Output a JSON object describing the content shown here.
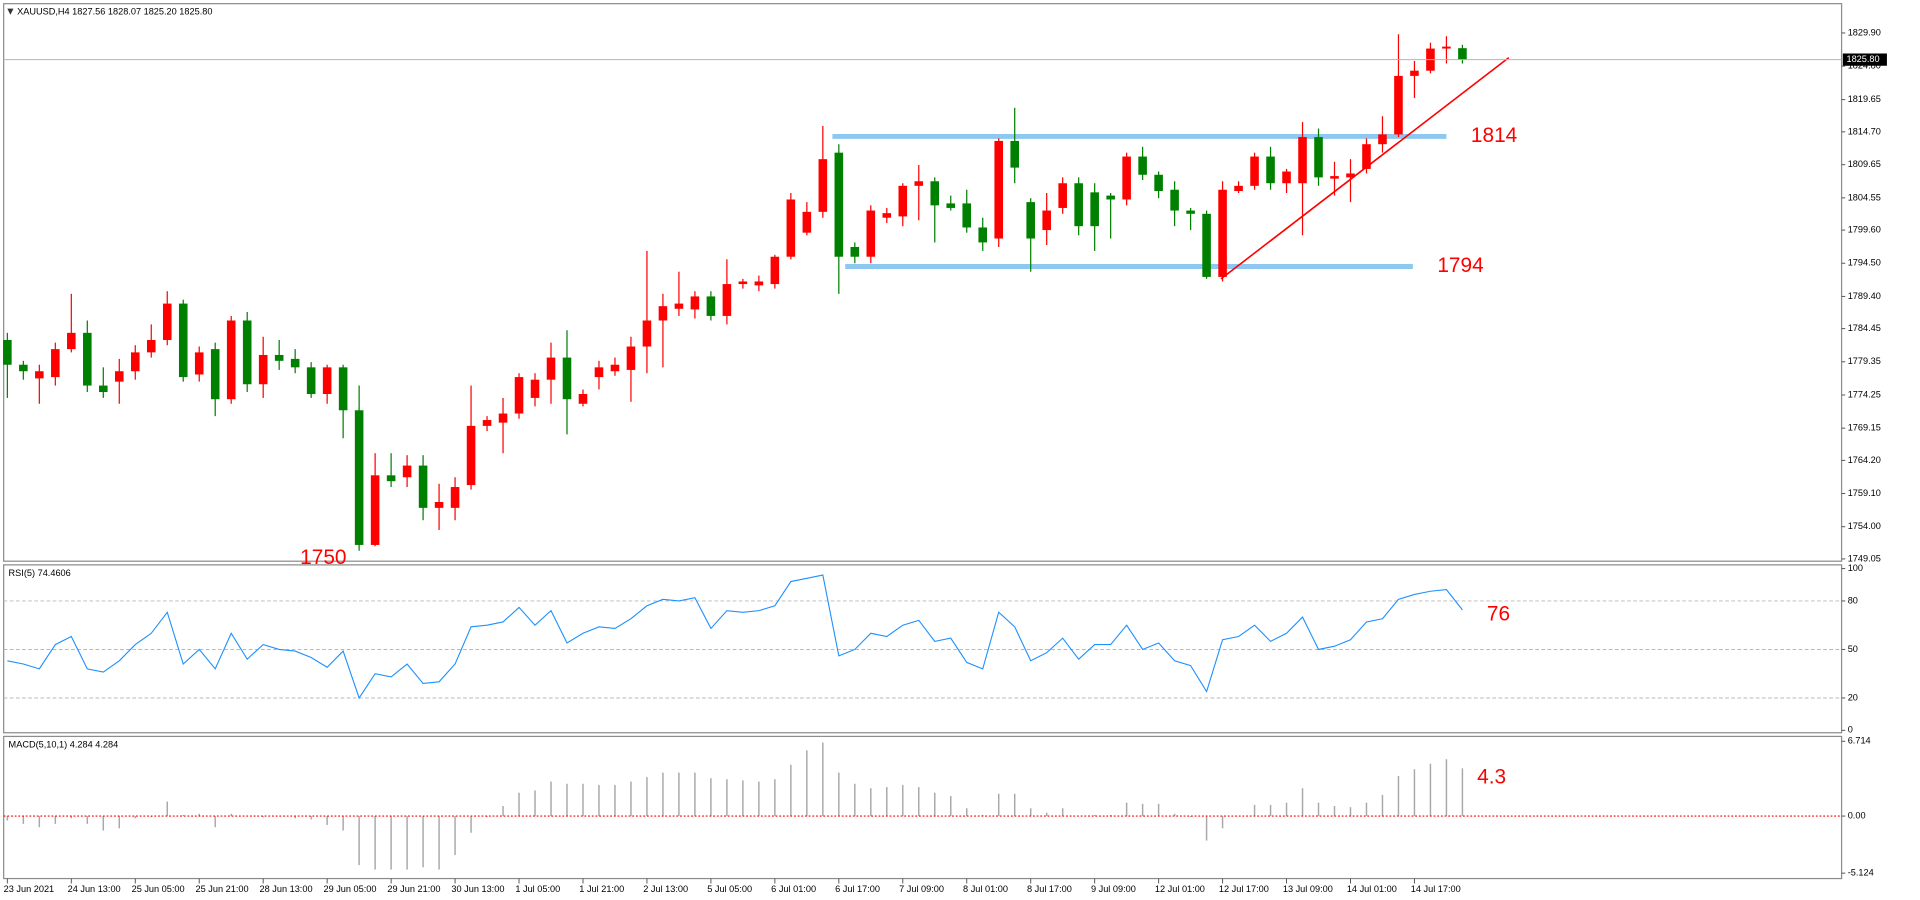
{
  "chart_data": [
    {
      "type": "candlestick",
      "title": "XAUUSD,H4  1827.56 1828.07 1825.20 1825.80",
      "categories": [
        "23 Jun 2021",
        null,
        null,
        null,
        "24 Jun 13:00",
        null,
        null,
        null,
        "25 Jun 05:00",
        null,
        null,
        null,
        "25 Jun 21:00",
        null,
        null,
        null,
        "28 Jun 13:00",
        null,
        null,
        null,
        "29 Jun 05:00",
        null,
        null,
        null,
        "29 Jun 21:00",
        null,
        null,
        null,
        "30 Jun 13:00",
        null,
        null,
        null,
        "1 Jul 05:00",
        null,
        null,
        null,
        "1 Jul 21:00",
        null,
        null,
        null,
        "2 Jul 13:00",
        null,
        null,
        null,
        "5 Jul 05:00",
        null,
        null,
        null,
        "6 Jul 01:00",
        null,
        null,
        null,
        "6 Jul 17:00",
        null,
        null,
        null,
        "7 Jul 09:00",
        null,
        null,
        null,
        "8 Jul 01:00",
        null,
        null,
        null,
        "8 Jul 17:00",
        null,
        null,
        null,
        "9 Jul 09:00",
        null,
        null,
        null,
        "12 Jul 01:00",
        null,
        null,
        null,
        "12 Jul 17:00",
        null,
        null,
        null,
        "13 Jul 09:00",
        null,
        null,
        null,
        "14 Jul 01:00",
        null,
        null,
        null,
        "14 Jul 17:00",
        null,
        null,
        null
      ],
      "open": [
        1782.7,
        1778.9,
        1776.8,
        1777.0,
        1781.3,
        1783.8,
        1775.7,
        1776.3,
        1777.9,
        1780.8,
        1782.7,
        1788.3,
        1777.4,
        1781.3,
        1773.6,
        1785.7,
        1775.9,
        1780.4,
        1779.8,
        1778.5,
        1774.4,
        1778.5,
        1771.9,
        1751.2,
        1761.9,
        1761.6,
        1763.4,
        1756.9,
        1756.9,
        1760.4,
        1769.5,
        1770.0,
        1771.4,
        1773.8,
        1776.6,
        1780.0,
        1772.9,
        1777.0,
        1777.9,
        1778.1,
        1781.7,
        1785.7,
        1787.5,
        1787.4,
        1789.4,
        1786.4,
        1791.3,
        1791.1,
        1791.3,
        1795.5,
        1799.2,
        1802.4,
        1811.5,
        1797.0,
        1795.5,
        1801.5,
        1801.7,
        1806.4,
        1807.1,
        1803.7,
        1803.7,
        1800.0,
        1798.3,
        1813.3,
        1803.9,
        1799.6,
        1803.0,
        1806.8,
        1805.4,
        1804.9,
        1804.3,
        1810.9,
        1808.1,
        1805.8,
        1802.6,
        1802.1,
        1792.4,
        1805.6,
        1806.4,
        1810.9,
        1806.8,
        1806.8,
        1813.9,
        1807.5,
        1807.7,
        1809.0,
        1812.8,
        1814.3,
        1823.3,
        1824.1,
        1827.5,
        1827.56
      ],
      "high": [
        1783.8,
        1779.5,
        1778.9,
        1782.3,
        1789.8,
        1785.7,
        1778.5,
        1779.8,
        1781.9,
        1785.1,
        1790.2,
        1788.9,
        1781.7,
        1782.3,
        1786.4,
        1787.0,
        1783.2,
        1782.7,
        1781.3,
        1779.3,
        1778.9,
        1778.9,
        1775.7,
        1765.3,
        1765.3,
        1765.0,
        1765.0,
        1760.6,
        1761.6,
        1775.7,
        1771.0,
        1773.8,
        1777.6,
        1777.6,
        1782.3,
        1784.2,
        1775.1,
        1779.5,
        1780.0,
        1783.2,
        1796.4,
        1789.8,
        1793.2,
        1790.2,
        1790.2,
        1795.1,
        1792.1,
        1792.6,
        1795.8,
        1805.3,
        1803.9,
        1815.6,
        1812.8,
        1797.7,
        1803.4,
        1803.0,
        1806.8,
        1809.6,
        1807.7,
        1804.9,
        1805.8,
        1801.5,
        1813.7,
        1818.4,
        1804.5,
        1805.3,
        1807.7,
        1807.7,
        1806.8,
        1805.3,
        1811.5,
        1812.4,
        1808.6,
        1807.1,
        1803.0,
        1802.6,
        1807.1,
        1807.1,
        1811.5,
        1812.4,
        1809.0,
        1816.2,
        1815.2,
        1810.1,
        1810.5,
        1813.7,
        1817.1,
        1829.7,
        1825.6,
        1828.4,
        1829.4,
        1828.07
      ],
      "low": [
        1773.8,
        1776.6,
        1772.9,
        1775.7,
        1780.8,
        1774.7,
        1773.8,
        1772.9,
        1776.6,
        1780.0,
        1781.9,
        1776.3,
        1776.3,
        1771.0,
        1772.9,
        1774.7,
        1773.8,
        1778.1,
        1777.6,
        1773.8,
        1772.9,
        1767.6,
        1750.3,
        1751.0,
        1760.1,
        1760.1,
        1755.0,
        1753.5,
        1755.0,
        1759.7,
        1768.7,
        1765.3,
        1770.6,
        1772.5,
        1772.9,
        1768.2,
        1772.5,
        1775.1,
        1777.2,
        1773.2,
        1777.6,
        1778.5,
        1786.4,
        1786.0,
        1785.7,
        1785.1,
        1790.6,
        1790.2,
        1790.6,
        1795.1,
        1798.8,
        1801.5,
        1789.8,
        1794.5,
        1794.5,
        1800.7,
        1800.2,
        1801.1,
        1797.7,
        1802.6,
        1799.2,
        1796.4,
        1797.0,
        1806.8,
        1793.2,
        1797.3,
        1802.1,
        1798.8,
        1796.4,
        1798.3,
        1803.4,
        1807.3,
        1804.5,
        1800.2,
        1799.6,
        1792.1,
        1791.7,
        1805.3,
        1805.8,
        1805.8,
        1805.3,
        1798.8,
        1806.4,
        1804.9,
        1803.9,
        1808.3,
        1811.5,
        1813.9,
        1819.9,
        1823.7,
        1825.2,
        1825.2
      ],
      "close": [
        1778.9,
        1777.9,
        1777.9,
        1781.3,
        1783.8,
        1775.7,
        1774.7,
        1777.9,
        1780.8,
        1782.7,
        1788.3,
        1777.0,
        1780.8,
        1773.6,
        1785.7,
        1775.9,
        1780.4,
        1779.5,
        1778.5,
        1774.4,
        1778.5,
        1771.9,
        1751.2,
        1761.9,
        1761.0,
        1763.4,
        1756.9,
        1757.8,
        1760.1,
        1769.5,
        1770.4,
        1771.4,
        1777.0,
        1776.6,
        1780.0,
        1773.6,
        1774.4,
        1778.5,
        1778.9,
        1781.7,
        1785.7,
        1787.9,
        1788.3,
        1789.4,
        1786.4,
        1791.3,
        1791.7,
        1791.7,
        1795.5,
        1804.3,
        1802.4,
        1810.5,
        1795.5,
        1795.5,
        1802.6,
        1802.2,
        1806.4,
        1807.1,
        1803.4,
        1803.0,
        1800.0,
        1797.7,
        1813.3,
        1809.2,
        1798.3,
        1802.6,
        1806.8,
        1800.2,
        1800.2,
        1804.3,
        1810.9,
        1808.1,
        1805.6,
        1802.6,
        1802.1,
        1792.4,
        1805.8,
        1806.4,
        1810.9,
        1806.8,
        1808.6,
        1813.9,
        1807.7,
        1807.9,
        1808.3,
        1812.8,
        1814.3,
        1823.3,
        1824.1,
        1827.5,
        1827.8,
        1825.8
      ],
      "up_color": "#ff0000",
      "down_color": "#008000",
      "ylim": [
        1748.7,
        1834.4
      ],
      "yticks": [
        {
          "value": 1829.9,
          "label": "1829.90"
        },
        {
          "value": 1824.8,
          "label": "1824.80"
        },
        1819.65,
        {
          "value": 1814.7,
          "label": "1814.70"
        },
        1809.65,
        1804.55,
        {
          "value": 1799.6,
          "label": "1799.60"
        },
        {
          "value": 1794.5,
          "label": "1794.50"
        },
        {
          "value": 1789.4,
          "label": "1789.40"
        },
        1784.45,
        1779.35,
        1774.25,
        1769.15,
        {
          "value": 1764.2,
          "label": "1764.20"
        },
        {
          "value": 1759.1,
          "label": "1759.10"
        },
        {
          "value": 1754,
          "label": "1754.00"
        },
        1749.05
      ],
      "current_price": {
        "value": 1825.8,
        "label": "1825.80"
      },
      "levels": [
        {
          "value": 1814,
          "x": [
            51.6,
            90
          ]
        },
        {
          "value": 1794,
          "x": [
            52.4,
            87.9
          ]
        }
      ],
      "level_color": "#8cc8f0",
      "trendline": {
        "x": [
          75.9,
          93.9
        ],
        "y": [
          1792.1,
          1826.1
        ],
        "color": "#ff0000"
      },
      "low_annotation": "1750"
    },
    {
      "type": "line",
      "title": "RSI(5) 74.4606",
      "values": [
        43,
        41,
        38,
        53,
        58,
        38,
        36,
        43,
        53,
        60,
        73,
        41,
        50,
        38,
        60,
        44,
        53,
        50,
        49,
        45,
        39,
        49,
        20,
        35,
        33,
        41,
        29,
        30,
        41,
        64,
        65,
        67,
        76,
        65,
        74,
        54,
        60,
        64,
        63,
        69,
        77,
        81,
        80,
        82,
        63,
        74,
        73,
        74,
        77,
        92,
        94,
        96,
        46,
        50,
        60,
        58,
        65,
        68,
        55,
        57,
        42,
        38,
        73,
        64,
        43,
        48,
        57,
        44,
        53,
        53,
        65,
        50,
        54,
        43,
        40,
        24,
        56,
        58,
        65,
        55,
        60,
        70,
        50,
        52,
        56,
        67,
        69,
        81,
        84,
        86,
        87,
        74.4606
      ],
      "color": "#1e90ff",
      "ylim": [
        -1.5,
        102.3
      ],
      "yticks": [
        0,
        20,
        50,
        80,
        100
      ],
      "levels": [
        20,
        50,
        80
      ],
      "annotation": "76"
    },
    {
      "type": "bar",
      "title": "MACD(5,10,1) 4.284 4.284",
      "values": [
        -0.4,
        -0.7,
        -1.0,
        -0.7,
        -0.2,
        -0.7,
        -1.3,
        -1.1,
        -0.2,
        -0.1,
        1.3,
        0.1,
        0.2,
        -1.0,
        0.2,
        0,
        -0.1,
        0,
        -0.2,
        -0.3,
        -0.8,
        -1.3,
        -4.4,
        -4.8,
        -4.8,
        -4.8,
        -4.6,
        -4.8,
        -3.5,
        -1.5,
        -0.1,
        0.9,
        2.1,
        2.3,
        3.1,
        2.9,
        2.9,
        2.8,
        2.8,
        3.1,
        3.5,
        3.9,
        3.9,
        3.9,
        3.4,
        3.3,
        3.2,
        3.1,
        3.3,
        4.6,
        5.9,
        6.6,
        3.9,
        2.9,
        2.5,
        2.6,
        2.8,
        2.6,
        2.1,
        1.8,
        0.7,
        0.1,
        2.0,
        2.0,
        0.7,
        0.3,
        0.7,
        0,
        0.1,
        0.1,
        1.2,
        1.1,
        1.1,
        0.2,
        -0.1,
        -2.2,
        -1.1,
        0,
        1.0,
        1.0,
        1.2,
        2.5,
        1.2,
        0.9,
        0.8,
        1.2,
        1.9,
        3.6,
        4.2,
        4.7,
        5.1,
        4.284
      ],
      "color": "#a8a8a8",
      "signal_color": "#ff0000",
      "ylim": [
        -5.61,
        7.15
      ],
      "yticks": [
        6.714,
        {
          "value": 0,
          "label": "0.00"
        },
        -5.124
      ],
      "annotation": "4.3"
    }
  ]
}
